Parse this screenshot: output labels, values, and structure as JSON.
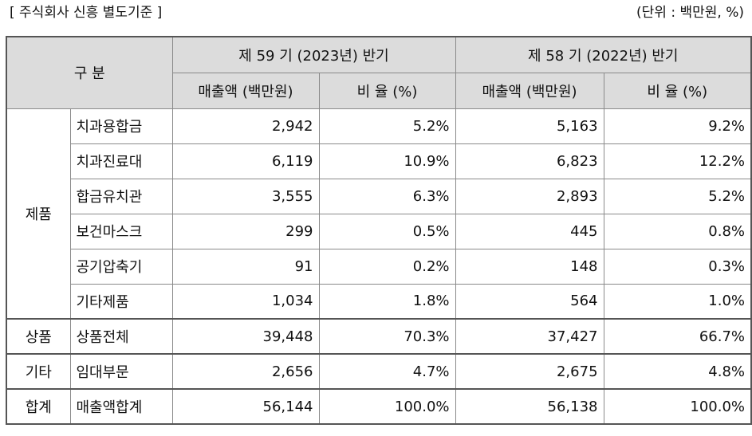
{
  "caption": {
    "left": "[ 주식회사 신흥 별도기준 ]",
    "right": "(단위 : 백만원, %)"
  },
  "table": {
    "header": {
      "gubun": "구 분",
      "period1": "제 59 기 (2023년) 반기",
      "period2": "제 58 기 (2022년) 반기",
      "sales_col": "매출액 (백만원)",
      "ratio_col": "비 율 (%)"
    },
    "groups": [
      {
        "category": "제품",
        "rows": [
          {
            "item": "치과용합금",
            "sales1": "2,942",
            "ratio1": "5.2%",
            "sales2": "5,163",
            "ratio2": "9.2%"
          },
          {
            "item": "치과진료대",
            "sales1": "6,119",
            "ratio1": "10.9%",
            "sales2": "6,823",
            "ratio2": "12.2%"
          },
          {
            "item": "합금유치관",
            "sales1": "3,555",
            "ratio1": "6.3%",
            "sales2": "2,893",
            "ratio2": "5.2%"
          },
          {
            "item": "보건마스크",
            "sales1": "299",
            "ratio1": "0.5%",
            "sales2": "445",
            "ratio2": "0.8%"
          },
          {
            "item": "공기압축기",
            "sales1": "91",
            "ratio1": "0.2%",
            "sales2": "148",
            "ratio2": "0.3%"
          },
          {
            "item": "기타제품",
            "sales1": "1,034",
            "ratio1": "1.8%",
            "sales2": "564",
            "ratio2": "1.0%"
          }
        ]
      },
      {
        "category": "상품",
        "rows": [
          {
            "item": "상품전체",
            "sales1": "39,448",
            "ratio1": "70.3%",
            "sales2": "37,427",
            "ratio2": "66.7%"
          }
        ]
      },
      {
        "category": "기타",
        "rows": [
          {
            "item": "임대부문",
            "sales1": "2,656",
            "ratio1": "4.7%",
            "sales2": "2,675",
            "ratio2": "4.8%"
          }
        ]
      },
      {
        "category": "합계",
        "rows": [
          {
            "item": "매출액합계",
            "sales1": "56,144",
            "ratio1": "100.0%",
            "sales2": "56,138",
            "ratio2": "100.0%"
          }
        ]
      }
    ]
  }
}
